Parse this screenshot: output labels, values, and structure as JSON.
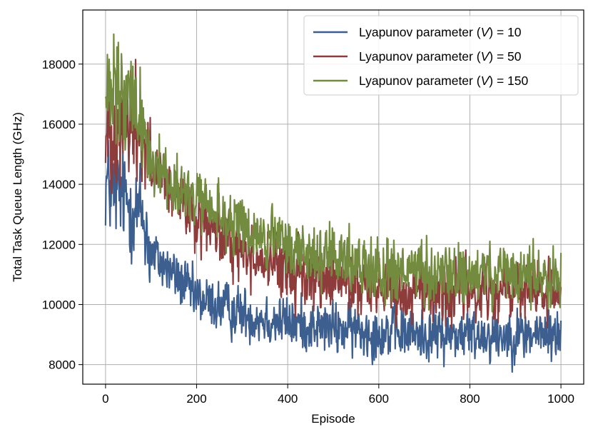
{
  "chart_data": {
    "type": "line",
    "title": "",
    "xlabel": "Episode",
    "ylabel": "Total Task Queue Length (GHz)",
    "xlim": [
      -50,
      1050
    ],
    "ylim": [
      7350,
      19800
    ],
    "xticks": [
      0,
      200,
      400,
      600,
      800,
      1000
    ],
    "yticks": [
      8000,
      10000,
      12000,
      14000,
      16000,
      18000
    ],
    "grid": true,
    "legend_position": "top-right",
    "episodes": 1001,
    "series": [
      {
        "name_prefix": "Lyapunov parameter (",
        "name_var": "V",
        "name_suffix": ") = 10",
        "color": "#3d5f8f",
        "trend": [
          [
            0,
            14100
          ],
          [
            20,
            13700
          ],
          [
            50,
            13400
          ],
          [
            80,
            13000
          ],
          [
            100,
            11700
          ],
          [
            150,
            11000
          ],
          [
            200,
            10200
          ],
          [
            300,
            9700
          ],
          [
            400,
            9400
          ],
          [
            500,
            9200
          ],
          [
            600,
            9100
          ],
          [
            700,
            9000
          ],
          [
            800,
            9000
          ],
          [
            1000,
            9000
          ]
        ],
        "noise": 420
      },
      {
        "name_prefix": "Lyapunov parameter (",
        "name_var": "V",
        "name_suffix": ") = 50",
        "color": "#8e3b3b",
        "trend": [
          [
            0,
            15400
          ],
          [
            20,
            16200
          ],
          [
            50,
            16100
          ],
          [
            80,
            15800
          ],
          [
            100,
            14500
          ],
          [
            150,
            13600
          ],
          [
            200,
            12800
          ],
          [
            300,
            11800
          ],
          [
            400,
            11100
          ],
          [
            500,
            10800
          ],
          [
            600,
            10600
          ],
          [
            700,
            10450
          ],
          [
            800,
            10400
          ],
          [
            1000,
            10400
          ]
        ],
        "noise": 500
      },
      {
        "name_prefix": "Lyapunov parameter (",
        "name_var": "V",
        "name_suffix": ") = 150",
        "color": "#728b3e",
        "trend": [
          [
            0,
            16500
          ],
          [
            20,
            16900
          ],
          [
            50,
            16700
          ],
          [
            80,
            16200
          ],
          [
            100,
            14800
          ],
          [
            150,
            14000
          ],
          [
            200,
            13400
          ],
          [
            300,
            12500
          ],
          [
            400,
            11900
          ],
          [
            500,
            11500
          ],
          [
            600,
            11200
          ],
          [
            700,
            11000
          ],
          [
            800,
            10950
          ],
          [
            1000,
            10950
          ]
        ],
        "noise": 500
      }
    ]
  }
}
